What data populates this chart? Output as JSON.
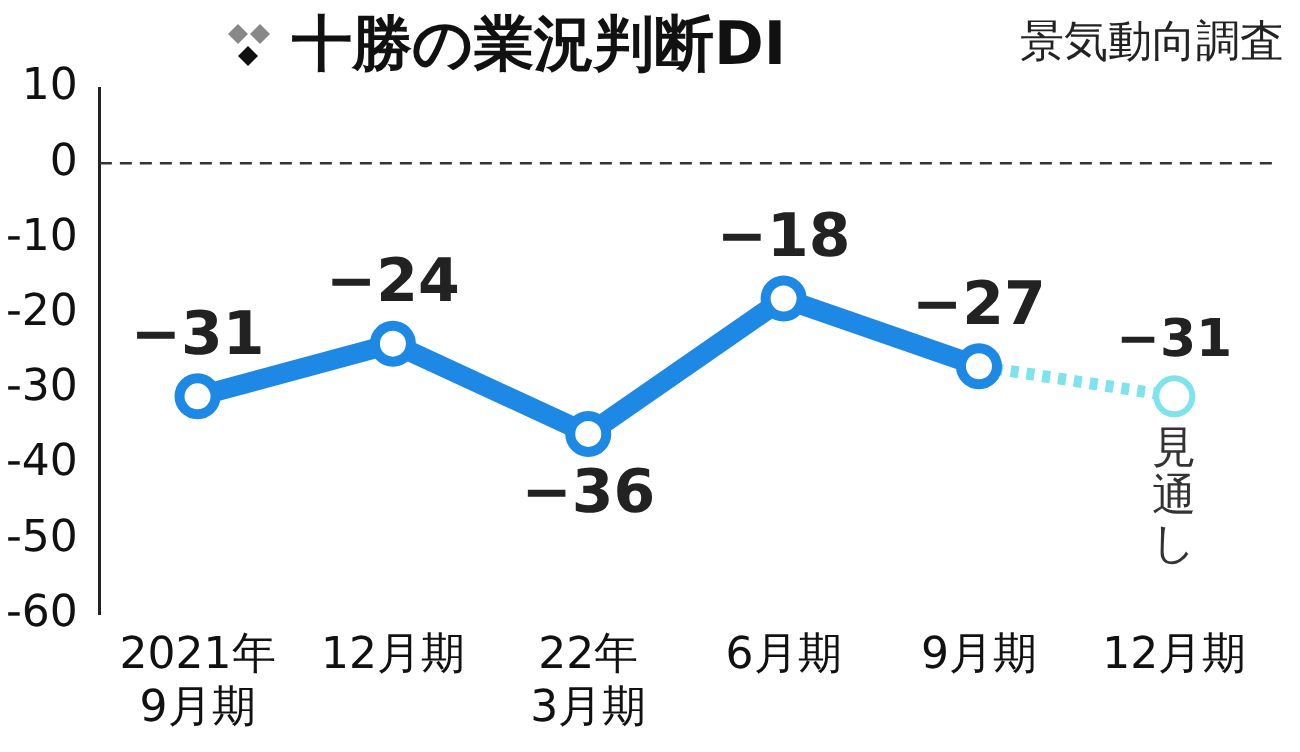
{
  "chart_data": {
    "type": "line",
    "title": "十勝の業況判断DI",
    "annotations": [
      "景気動向調査",
      "見通し"
    ],
    "categories": [
      "2021年\n9月期",
      "12月期",
      "22年\n3月期",
      "6月期",
      "9月期",
      "12月期"
    ],
    "series": [
      {
        "color": "#1e88e5",
        "values": [
          -31,
          -24,
          -36,
          -18,
          -27,
          null
        ]
      },
      {
        "color": "#7fe3ee",
        "values": [
          null,
          null,
          null,
          null,
          -27,
          -31
        ],
        "value_labels": [
          null,
          null,
          null,
          null,
          null,
          "−31"
        ],
        "line_style": "dotted"
      }
    ],
    "ylim": [
      -60,
      10
    ],
    "yticks": [
      -60,
      -50,
      -40,
      -30,
      -20,
      -10,
      0,
      10
    ],
    "ref_lines": [
      {
        "axis": "y",
        "value": 0,
        "line_style": "dashed",
        "color": "#333333"
      }
    ],
    "data_labels": true,
    "marker": "circle",
    "grid": false,
    "legend": false
  }
}
